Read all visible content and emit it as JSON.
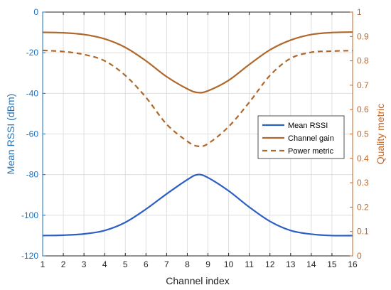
{
  "chart_data": {
    "type": "line",
    "xlabel": "Channel index",
    "ylabel_left": "Mean RSSI (dBm)",
    "ylabel_right": "Quality metric",
    "xlim": [
      1,
      16
    ],
    "ylim_left": [
      -120,
      0
    ],
    "ylim_right": [
      0,
      1
    ],
    "xticks": [
      1,
      2,
      3,
      4,
      5,
      6,
      7,
      8,
      9,
      10,
      11,
      12,
      13,
      14,
      15,
      16
    ],
    "yticks_left": [
      0,
      -20,
      -40,
      -60,
      -80,
      -100,
      -120
    ],
    "yticks_right": [
      0,
      0.1,
      0.2,
      0.3,
      0.4,
      0.5,
      0.6,
      0.7,
      0.8,
      0.9,
      1
    ],
    "grid": true,
    "legend_position": "right",
    "colors": {
      "left_axis": "#1e73be",
      "right_axis": "#c8641e"
    },
    "x": [
      1,
      2,
      3,
      4,
      5,
      6,
      7,
      8,
      8.5,
      9,
      10,
      11,
      12,
      13,
      14,
      15,
      16
    ],
    "series": [
      {
        "name": "Mean RSSI",
        "axis": "left",
        "color": "#2c5fc4",
        "style": "solid",
        "values": [
          -110,
          -109.8,
          -109.2,
          -107.5,
          -103.5,
          -97,
          -89.5,
          -82.5,
          -80,
          -81.5,
          -88,
          -96,
          -103,
          -107.5,
          -109.3,
          -110,
          -110
        ]
      },
      {
        "name": "Channel gain",
        "axis": "right",
        "color": "#b0682a",
        "style": "solid",
        "values": [
          0.917,
          0.915,
          0.908,
          0.89,
          0.855,
          0.8,
          0.735,
          0.685,
          0.67,
          0.677,
          0.72,
          0.785,
          0.845,
          0.885,
          0.908,
          0.916,
          0.918
        ]
      },
      {
        "name": "Power metric",
        "axis": "right",
        "color": "#b0682a",
        "style": "dashed",
        "values": [
          0.843,
          0.838,
          0.826,
          0.8,
          0.74,
          0.65,
          0.54,
          0.47,
          0.45,
          0.46,
          0.53,
          0.63,
          0.74,
          0.81,
          0.835,
          0.84,
          0.842
        ]
      }
    ]
  }
}
